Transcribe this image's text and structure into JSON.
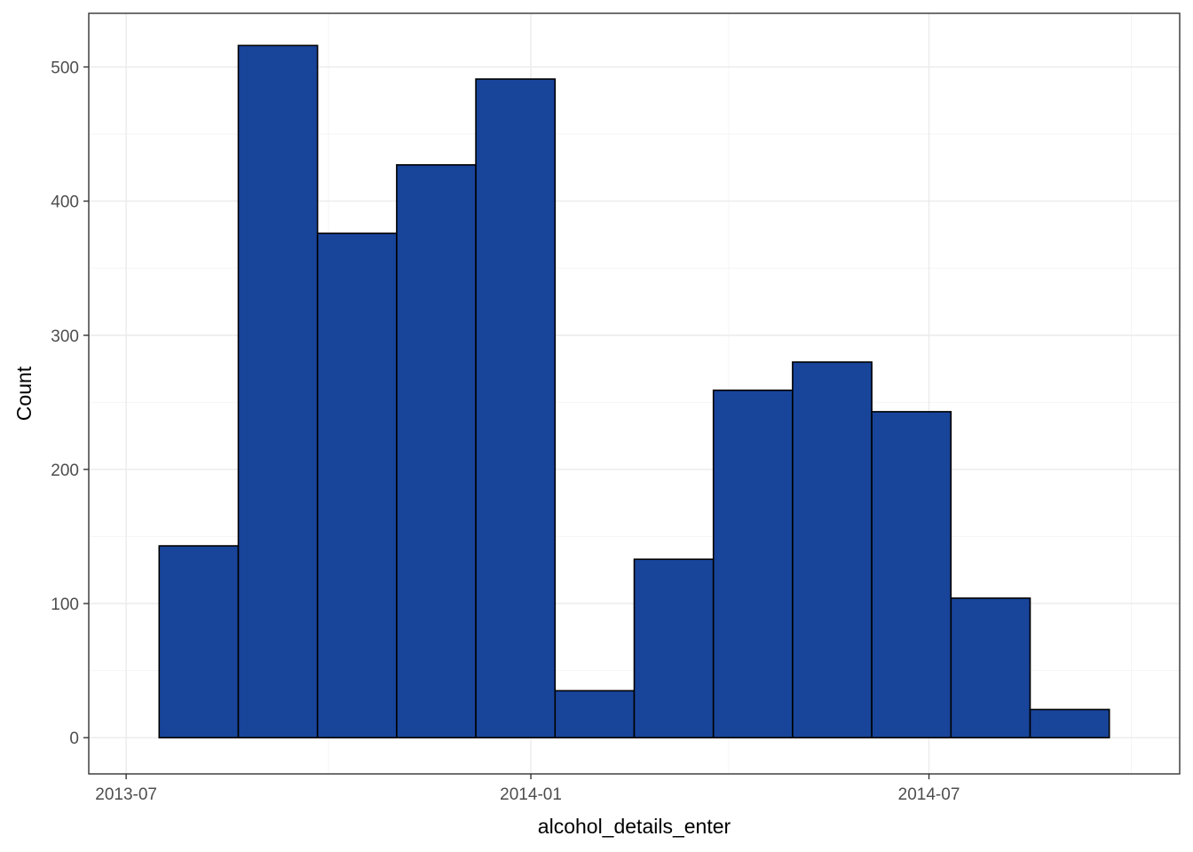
{
  "chart_data": {
    "type": "bar",
    "title": "",
    "xlabel": "alcohol_details_enter",
    "ylabel": "Count",
    "bin_edges": [
      "2013-07-16",
      "2013-08-21",
      "2013-09-26",
      "2013-11-01",
      "2013-12-07",
      "2014-01-12",
      "2014-02-17",
      "2014-03-25",
      "2014-04-30",
      "2014-06-05",
      "2014-07-11",
      "2014-08-16",
      "2014-09-21"
    ],
    "values": [
      143,
      516,
      376,
      427,
      491,
      35,
      133,
      259,
      280,
      243,
      104,
      21
    ],
    "xlim": [
      "2013-06-14",
      "2014-10-23"
    ],
    "ylim": [
      -27,
      540
    ],
    "x_ticks": [
      {
        "date": "2013-07-01",
        "label": "2013-07"
      },
      {
        "date": "2014-01-01",
        "label": "2014-01"
      },
      {
        "date": "2014-07-01",
        "label": "2014-07"
      }
    ],
    "x_minor_ticks": [
      "2013-10-01",
      "2014-04-01",
      "2014-10-01"
    ],
    "y_ticks": [
      0,
      100,
      200,
      300,
      400,
      500
    ],
    "y_minor_ticks": [
      50,
      150,
      250,
      350,
      450
    ],
    "grid": true,
    "colors": {
      "bar_fill": "#18449a",
      "bar_outline": "#000000"
    }
  }
}
